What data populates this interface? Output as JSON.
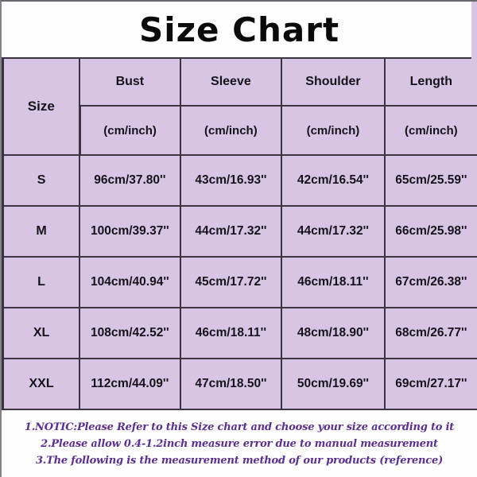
{
  "title": "Size Chart",
  "table": {
    "corner_header": "Size",
    "columns": [
      "Bust",
      "Sleeve",
      "Shoulder",
      "Length"
    ],
    "unit_label": "(cm/inch)",
    "rows": [
      {
        "size": "S",
        "bust": "96cm/37.80''",
        "sleeve": "43cm/16.93''",
        "shoulder": "42cm/16.54''",
        "length": "65cm/25.59''"
      },
      {
        "size": "M",
        "bust": "100cm/39.37''",
        "sleeve": "44cm/17.32''",
        "shoulder": "44cm/17.32''",
        "length": "66cm/25.98''"
      },
      {
        "size": "L",
        "bust": "104cm/40.94''",
        "sleeve": "45cm/17.72''",
        "shoulder": "46cm/18.11''",
        "length": "67cm/26.38''"
      },
      {
        "size": "XL",
        "bust": "108cm/42.52''",
        "sleeve": "46cm/18.11''",
        "shoulder": "48cm/18.90''",
        "length": "68cm/26.77''"
      },
      {
        "size": "XXL",
        "bust": "112cm/44.09''",
        "sleeve": "47cm/18.50''",
        "shoulder": "50cm/19.69''",
        "length": "69cm/27.17''"
      }
    ]
  },
  "notes": [
    "1.NOTIC:Please Refer to this Size chart and choose your size according to it",
    "2.Please allow 0.4-1.2inch measure error due to manual measurement",
    "3.The following is the measurement method of our products (reference)"
  ],
  "colors": {
    "cell_bg": "#d8c5e6",
    "border_color": "#3a3340",
    "note_text": "#5b2e91",
    "title_text": "#0a0a0a"
  },
  "chart_data": {
    "type": "table",
    "title": "Size Chart",
    "columns": [
      "Size",
      "Bust (cm/inch)",
      "Sleeve (cm/inch)",
      "Shoulder (cm/inch)",
      "Length (cm/inch)"
    ],
    "rows": [
      [
        "S",
        "96cm/37.80''",
        "43cm/16.93''",
        "42cm/16.54''",
        "65cm/25.59''"
      ],
      [
        "M",
        "100cm/39.37''",
        "44cm/17.32''",
        "44cm/17.32''",
        "66cm/25.98''"
      ],
      [
        "L",
        "104cm/40.94''",
        "45cm/17.72''",
        "46cm/18.11''",
        "67cm/26.38''"
      ],
      [
        "XL",
        "108cm/42.52''",
        "46cm/18.11''",
        "48cm/18.90''",
        "68cm/26.77''"
      ],
      [
        "XXL",
        "112cm/44.09''",
        "47cm/18.50''",
        "50cm/19.69''",
        "69cm/27.17''"
      ]
    ]
  }
}
